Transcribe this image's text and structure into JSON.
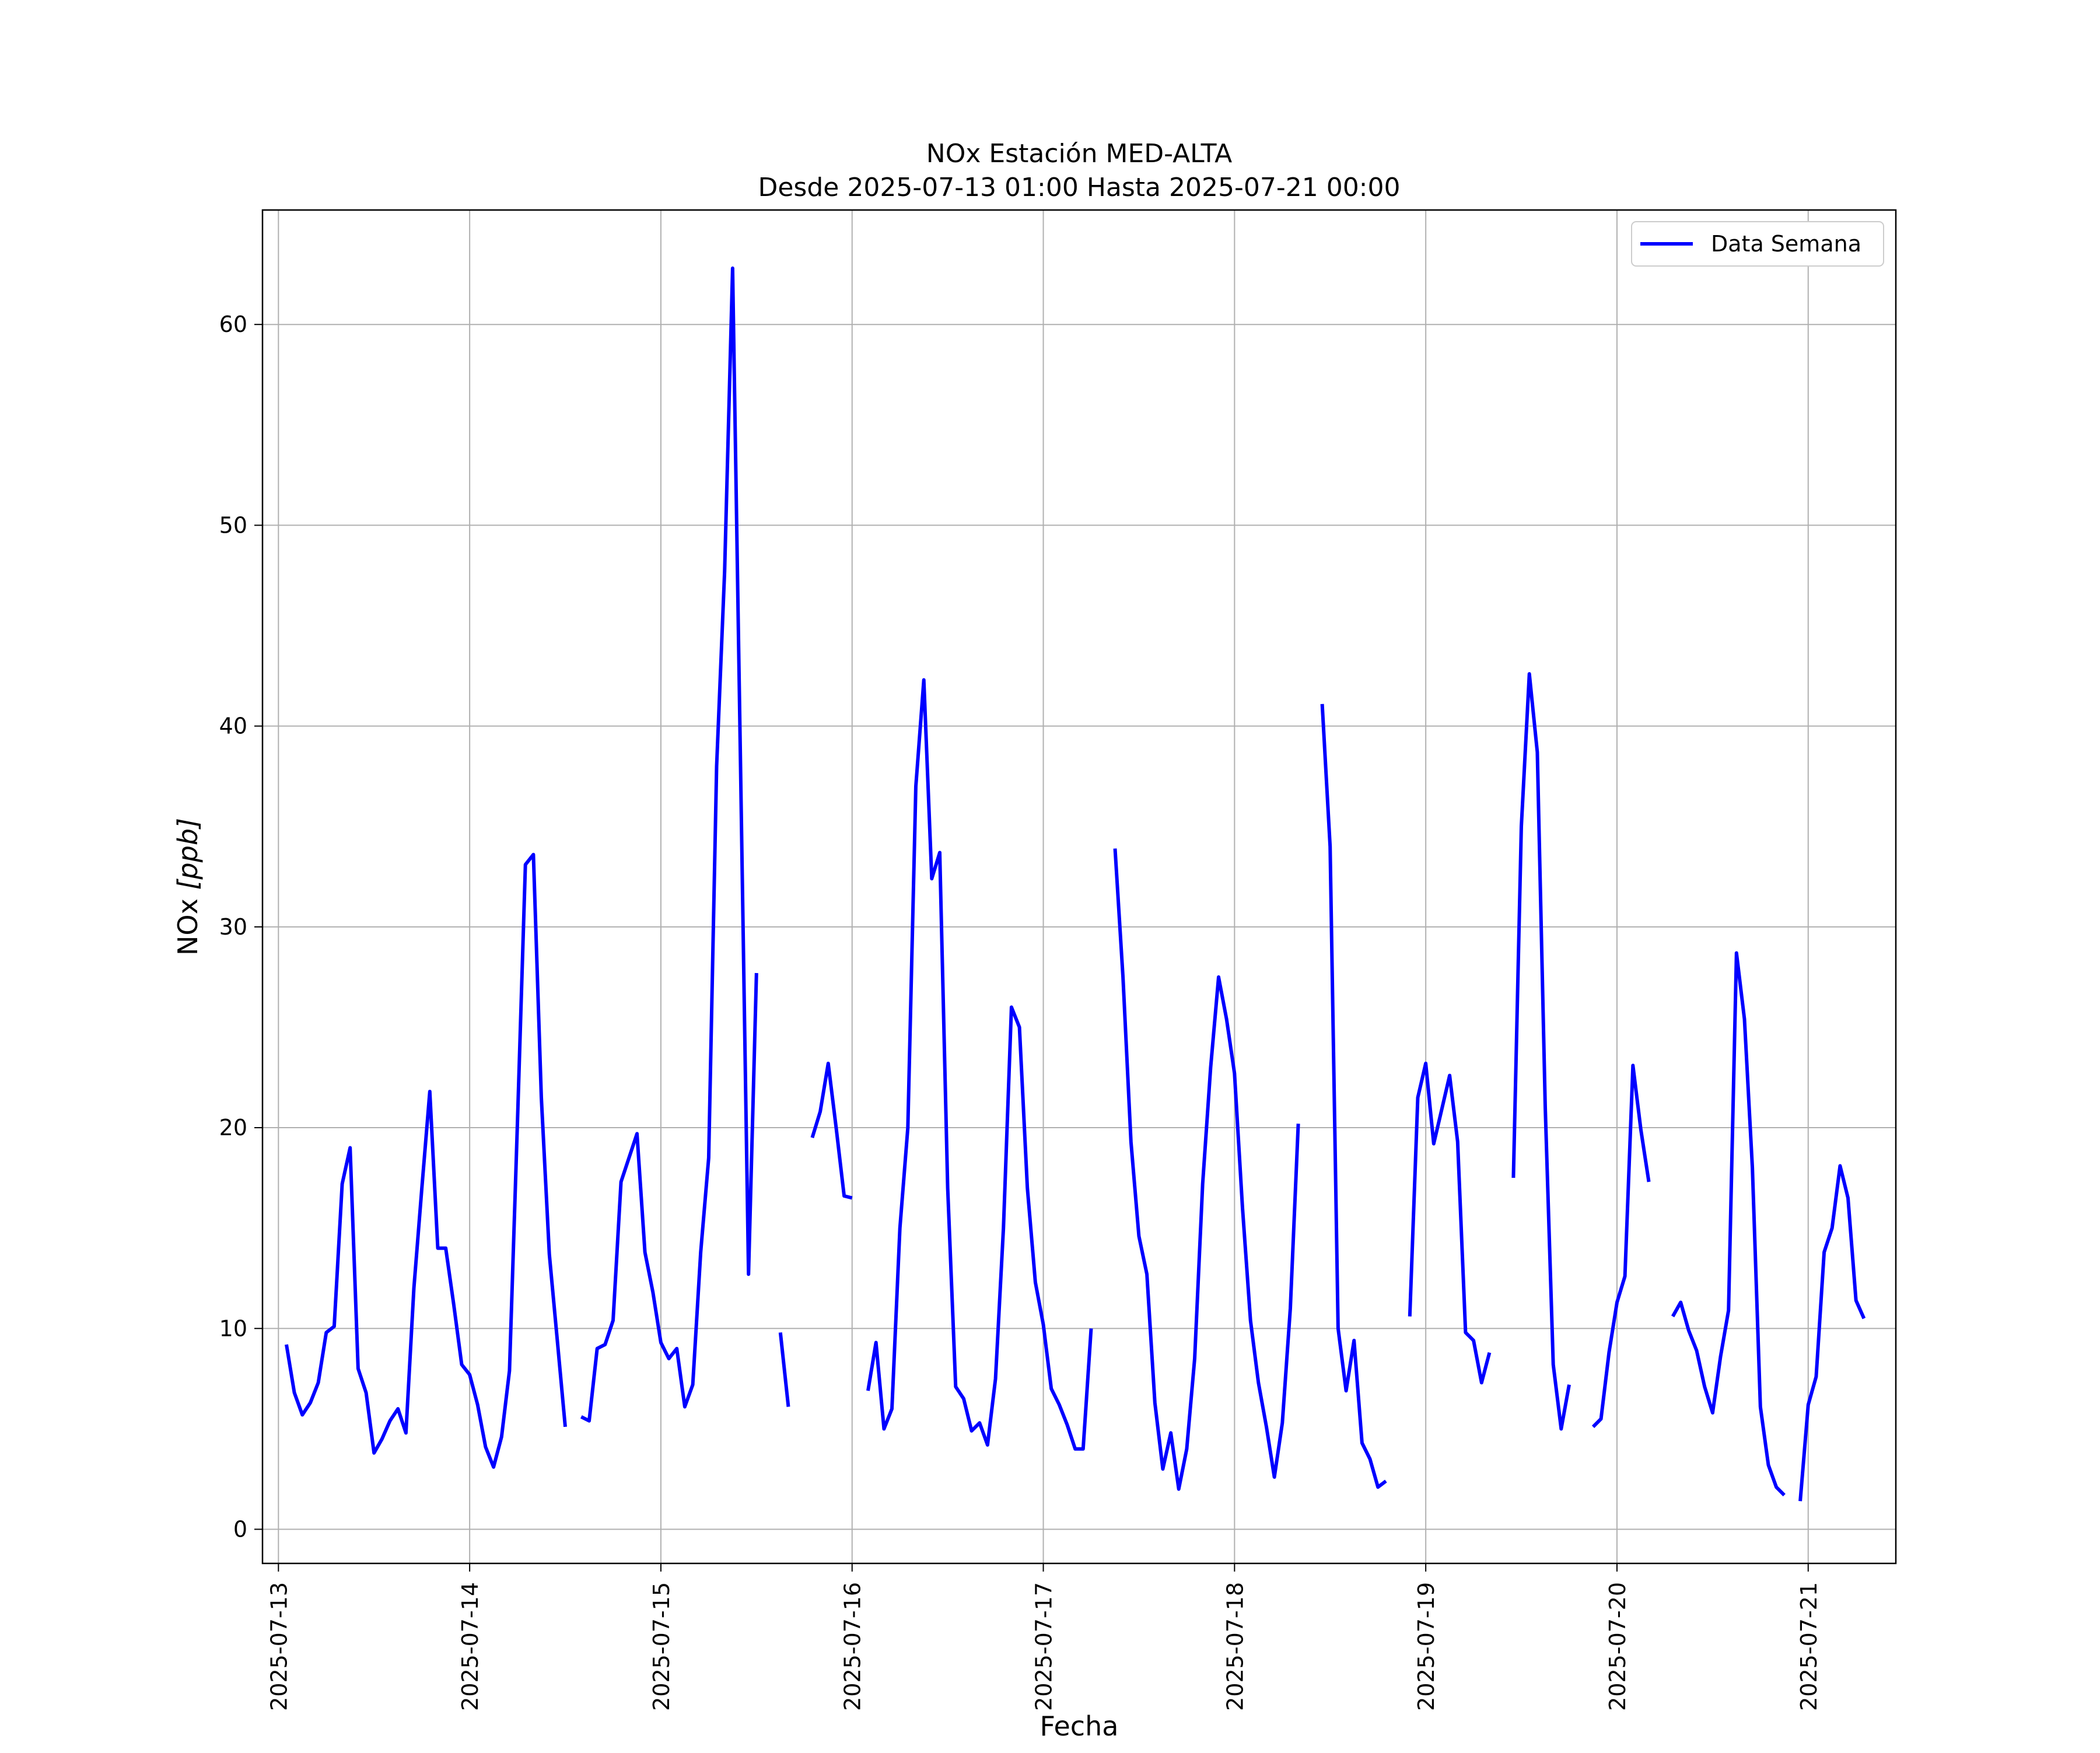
{
  "chart_data": {
    "type": "line",
    "title": "NOx Estación MED-ALTA",
    "subtitle": "Desde 2025-07-13 01:00 Hasta 2025-07-21 00:00",
    "xlabel": "Fecha",
    "ylabel_prefix": "NOx ",
    "ylabel_unit": "[ppb]",
    "xlim": [
      "2025-07-12 22:00",
      "2025-07-21 11:00"
    ],
    "ylim": [
      -1.7,
      65.7
    ],
    "x_ticks": [
      "2025-07-13",
      "2025-07-14",
      "2025-07-15",
      "2025-07-16",
      "2025-07-17",
      "2025-07-18",
      "2025-07-19",
      "2025-07-20",
      "2025-07-21"
    ],
    "y_ticks": [
      0,
      10,
      20,
      30,
      40,
      50,
      60
    ],
    "y_tick_labels": [
      "0",
      "10",
      "20",
      "30",
      "40",
      "50",
      "60"
    ],
    "grid": true,
    "legend_position": "top-right",
    "colors": {
      "series": "#0000ff",
      "grid": "#b0b0b0",
      "axes": "#000000"
    },
    "series": [
      {
        "name": "Data Semana",
        "x_start": "2025-07-13 01:00",
        "x_step": "1h",
        "y": [
          9.2,
          6.8,
          5.7,
          6.3,
          7.3,
          9.8,
          10.1,
          17.2,
          19.0,
          8.0,
          6.8,
          3.8,
          4.5,
          5.4,
          6.0,
          4.8,
          12.0,
          17.0,
          21.8,
          14.0,
          14.0,
          11.2,
          8.2,
          7.7,
          6.2,
          4.1,
          3.1,
          4.6,
          7.9,
          20.3,
          33.1,
          33.6,
          21.5,
          13.7,
          9.4,
          5.1,
          null,
          5.6,
          5.4,
          9.0,
          9.2,
          10.4,
          17.3,
          18.5,
          19.7,
          13.8,
          11.8,
          9.3,
          8.5,
          9.0,
          6.1,
          7.2,
          13.8,
          18.5,
          38.0,
          47.7,
          62.8,
          38.0,
          12.7,
          27.7,
          null,
          null,
          9.8,
          6.1,
          null,
          null,
          19.5,
          20.8,
          23.2,
          20.0,
          16.6,
          16.5,
          null,
          6.9,
          9.3,
          5.0,
          6.0,
          15.0,
          20.0,
          37.0,
          42.3,
          32.4,
          33.7,
          17.0,
          7.1,
          6.5,
          4.9,
          5.3,
          4.2,
          7.5,
          15.0,
          26.0,
          25.0,
          17.0,
          12.3,
          10.2,
          7.0,
          6.2,
          5.2,
          4.0,
          4.0,
          10.0,
          null,
          null,
          33.9,
          27.5,
          19.3,
          14.6,
          12.7,
          6.3,
          3.0,
          4.8,
          2.0,
          4.0,
          8.5,
          17.2,
          23.0,
          27.5,
          25.4,
          22.7,
          16.0,
          10.4,
          7.3,
          5.1,
          2.6,
          5.3,
          11.0,
          20.2,
          null,
          null,
          41.1,
          34.0,
          10.0,
          6.9,
          9.4,
          4.3,
          3.5,
          2.1,
          2.4,
          null,
          null,
          10.6,
          21.5,
          23.2,
          19.2,
          20.9,
          22.6,
          19.3,
          9.8,
          9.4,
          7.3,
          8.8,
          null,
          null,
          17.5,
          35.0,
          42.6,
          38.7,
          21.0,
          8.2,
          5.0,
          7.2,
          null,
          null,
          5.1,
          5.5,
          8.8,
          11.3,
          12.6,
          23.1,
          19.9,
          17.3,
          null,
          null,
          10.6,
          11.3,
          9.9,
          8.9,
          7.1,
          5.8,
          8.6,
          10.9,
          28.7,
          25.4,
          18.0,
          6.1,
          3.2,
          2.1,
          1.7,
          null,
          1.4,
          6.2,
          7.6,
          13.8,
          15.0,
          18.1,
          16.5,
          11.4,
          10.5
        ]
      }
    ]
  }
}
